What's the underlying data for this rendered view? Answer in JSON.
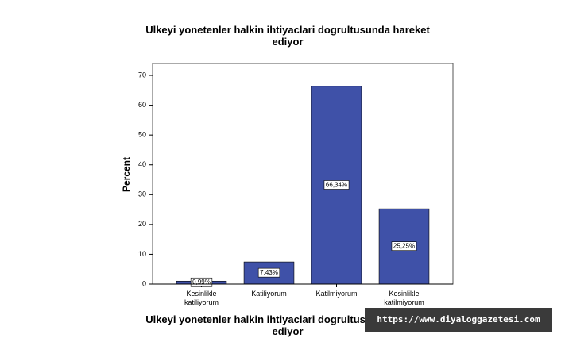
{
  "chart_data": {
    "type": "bar",
    "title": "Ulkeyi yonetenler halkin ihtiyaclari dogrultusunda hareket ediyor",
    "x_label": "Ulkeyi yonetenler halkin ihtiyaclari dogrultusunda hareket ediyor",
    "y_label": "Percent",
    "categories": [
      "Kesinlikle katiliyorum",
      "Katiliyorum",
      "Katilmiyorum",
      "Kesinlikle katilmiyorum"
    ],
    "values": [
      0.99,
      7.43,
      66.34,
      25.25
    ],
    "value_labels": [
      "0,99%",
      "7,43%",
      "66,34%",
      "25,25%"
    ],
    "color": "#3f51a8",
    "ylim": [
      0,
      74
    ],
    "yticks": [
      0,
      10,
      20,
      30,
      40,
      50,
      60,
      70
    ]
  },
  "watermark": "https://www.diyaloggazetesi.com"
}
